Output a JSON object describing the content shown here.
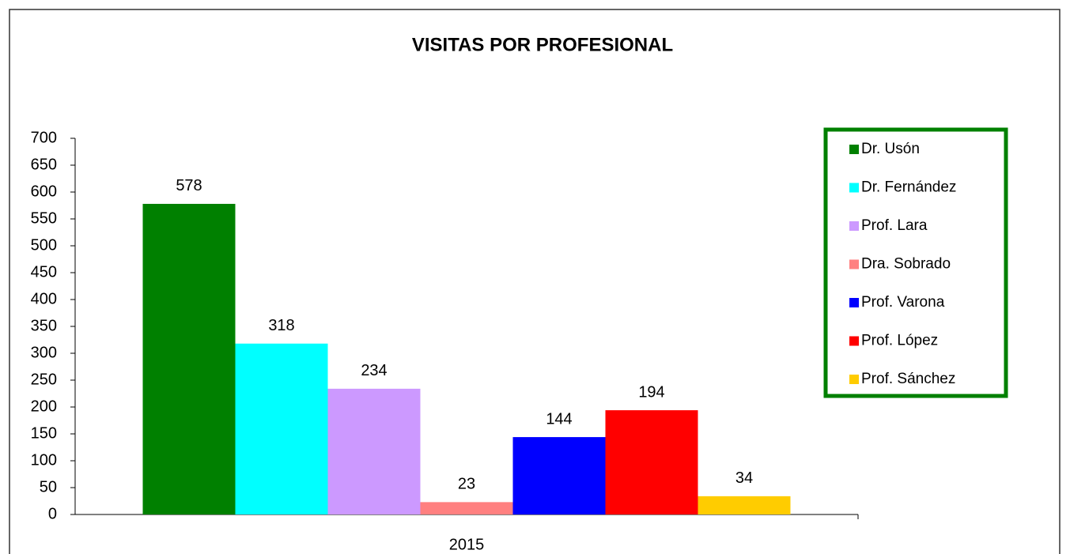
{
  "chart_data": {
    "type": "bar",
    "title": "VISITAS POR PROFESIONAL",
    "categories": [
      "2015"
    ],
    "series": [
      {
        "name": "Dr. Usón",
        "color": "#008000",
        "values": [
          578
        ]
      },
      {
        "name": "Dr. Fernández",
        "color": "#00ffff",
        "values": [
          318
        ]
      },
      {
        "name": "Prof. Lara",
        "color": "#cc99ff",
        "values": [
          234
        ]
      },
      {
        "name": "Dra. Sobrado",
        "color": "#ff8080",
        "values": [
          23
        ]
      },
      {
        "name": "Prof. Varona",
        "color": "#0000ff",
        "values": [
          144
        ]
      },
      {
        "name": "Prof. López",
        "color": "#ff0000",
        "values": [
          194
        ]
      },
      {
        "name": "Prof. Sánchez",
        "color": "#ffcc00",
        "values": [
          34
        ]
      }
    ],
    "ylim": [
      0,
      700
    ],
    "yticks": [
      0,
      50,
      100,
      150,
      200,
      250,
      300,
      350,
      400,
      450,
      500,
      550,
      600,
      650,
      700
    ],
    "grid": false,
    "legend": "right"
  }
}
